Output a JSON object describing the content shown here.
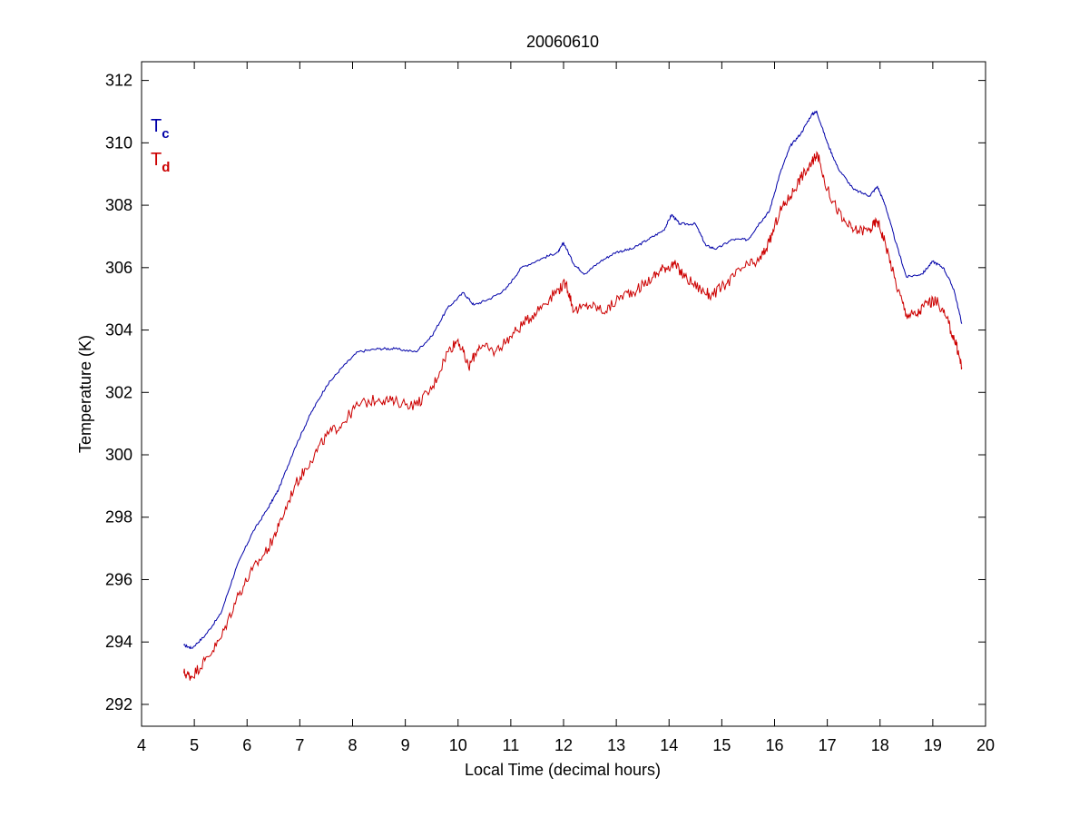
{
  "chart_data": {
    "type": "line",
    "title": "20060610",
    "xlabel": "Local Time (decimal hours)",
    "ylabel": "Temperature (K)",
    "xlim": [
      4,
      20
    ],
    "ylim": [
      291.3,
      312.6
    ],
    "xticks": [
      4,
      5,
      6,
      7,
      8,
      9,
      10,
      11,
      12,
      13,
      14,
      15,
      16,
      17,
      18,
      19,
      20
    ],
    "yticks": [
      292,
      294,
      296,
      298,
      300,
      302,
      304,
      306,
      308,
      310,
      312
    ],
    "grid": false,
    "legend_position": "top-left",
    "series": [
      {
        "name": "Tc",
        "label_main": "T",
        "label_sub": "c",
        "color": "#0000a8",
        "points": [
          [
            4.8,
            293.9
          ],
          [
            4.95,
            293.8
          ],
          [
            5.2,
            294.2
          ],
          [
            5.5,
            294.9
          ],
          [
            5.8,
            296.4
          ],
          [
            6.1,
            297.5
          ],
          [
            6.4,
            298.3
          ],
          [
            6.6,
            298.9
          ],
          [
            6.9,
            300.2
          ],
          [
            7.2,
            301.3
          ],
          [
            7.5,
            302.2
          ],
          [
            7.8,
            302.8
          ],
          [
            8.1,
            303.3
          ],
          [
            8.5,
            303.4
          ],
          [
            8.8,
            303.4
          ],
          [
            9.2,
            303.3
          ],
          [
            9.5,
            303.8
          ],
          [
            9.8,
            304.7
          ],
          [
            10.1,
            305.2
          ],
          [
            10.3,
            304.8
          ],
          [
            10.6,
            305.0
          ],
          [
            10.9,
            305.3
          ],
          [
            11.2,
            306.0
          ],
          [
            11.6,
            306.3
          ],
          [
            11.9,
            306.5
          ],
          [
            12.0,
            306.8
          ],
          [
            12.2,
            306.1
          ],
          [
            12.4,
            305.8
          ],
          [
            12.7,
            306.2
          ],
          [
            13.0,
            306.5
          ],
          [
            13.3,
            306.6
          ],
          [
            13.6,
            306.9
          ],
          [
            13.9,
            307.2
          ],
          [
            14.05,
            307.7
          ],
          [
            14.2,
            307.4
          ],
          [
            14.5,
            307.4
          ],
          [
            14.7,
            306.7
          ],
          [
            14.9,
            306.6
          ],
          [
            15.2,
            306.9
          ],
          [
            15.5,
            306.9
          ],
          [
            15.7,
            307.4
          ],
          [
            15.9,
            307.8
          ],
          [
            16.1,
            309.0
          ],
          [
            16.3,
            309.9
          ],
          [
            16.5,
            310.3
          ],
          [
            16.7,
            310.9
          ],
          [
            16.8,
            311.0
          ],
          [
            17.0,
            310.0
          ],
          [
            17.2,
            309.2
          ],
          [
            17.5,
            308.5
          ],
          [
            17.8,
            308.3
          ],
          [
            17.95,
            308.6
          ],
          [
            18.1,
            308.0
          ],
          [
            18.3,
            306.8
          ],
          [
            18.5,
            305.7
          ],
          [
            18.8,
            305.8
          ],
          [
            19.0,
            306.2
          ],
          [
            19.2,
            306.0
          ],
          [
            19.4,
            305.3
          ],
          [
            19.55,
            304.2
          ]
        ]
      },
      {
        "name": "Td",
        "label_main": "T",
        "label_sub": "d",
        "color": "#cc0000",
        "points": [
          [
            4.8,
            293.0
          ],
          [
            4.95,
            292.9
          ],
          [
            5.2,
            293.4
          ],
          [
            5.5,
            294.1
          ],
          [
            5.8,
            295.4
          ],
          [
            6.1,
            296.3
          ],
          [
            6.4,
            297.0
          ],
          [
            6.6,
            297.7
          ],
          [
            6.9,
            299.0
          ],
          [
            7.2,
            299.8
          ],
          [
            7.5,
            300.6
          ],
          [
            7.8,
            301.0
          ],
          [
            8.1,
            301.6
          ],
          [
            8.5,
            301.8
          ],
          [
            8.8,
            301.7
          ],
          [
            9.2,
            301.6
          ],
          [
            9.5,
            302.1
          ],
          [
            9.8,
            303.3
          ],
          [
            10.0,
            303.7
          ],
          [
            10.2,
            302.8
          ],
          [
            10.4,
            303.5
          ],
          [
            10.7,
            303.3
          ],
          [
            11.0,
            303.8
          ],
          [
            11.3,
            304.3
          ],
          [
            11.6,
            304.8
          ],
          [
            11.9,
            305.3
          ],
          [
            12.05,
            305.5
          ],
          [
            12.2,
            304.6
          ],
          [
            12.5,
            304.8
          ],
          [
            12.8,
            304.6
          ],
          [
            13.1,
            305.1
          ],
          [
            13.4,
            305.3
          ],
          [
            13.7,
            305.7
          ],
          [
            13.9,
            306.0
          ],
          [
            14.1,
            306.1
          ],
          [
            14.3,
            305.7
          ],
          [
            14.6,
            305.3
          ],
          [
            14.8,
            305.1
          ],
          [
            15.1,
            305.5
          ],
          [
            15.4,
            306.0
          ],
          [
            15.7,
            306.2
          ],
          [
            15.9,
            306.8
          ],
          [
            16.1,
            307.8
          ],
          [
            16.3,
            308.3
          ],
          [
            16.5,
            308.9
          ],
          [
            16.7,
            309.3
          ],
          [
            16.8,
            309.7
          ],
          [
            17.0,
            308.5
          ],
          [
            17.3,
            307.5
          ],
          [
            17.5,
            307.2
          ],
          [
            17.8,
            307.2
          ],
          [
            17.95,
            307.5
          ],
          [
            18.1,
            306.8
          ],
          [
            18.3,
            305.5
          ],
          [
            18.5,
            304.5
          ],
          [
            18.7,
            304.5
          ],
          [
            18.9,
            304.9
          ],
          [
            19.1,
            304.9
          ],
          [
            19.3,
            304.2
          ],
          [
            19.45,
            303.5
          ],
          [
            19.55,
            302.8
          ]
        ]
      }
    ]
  }
}
